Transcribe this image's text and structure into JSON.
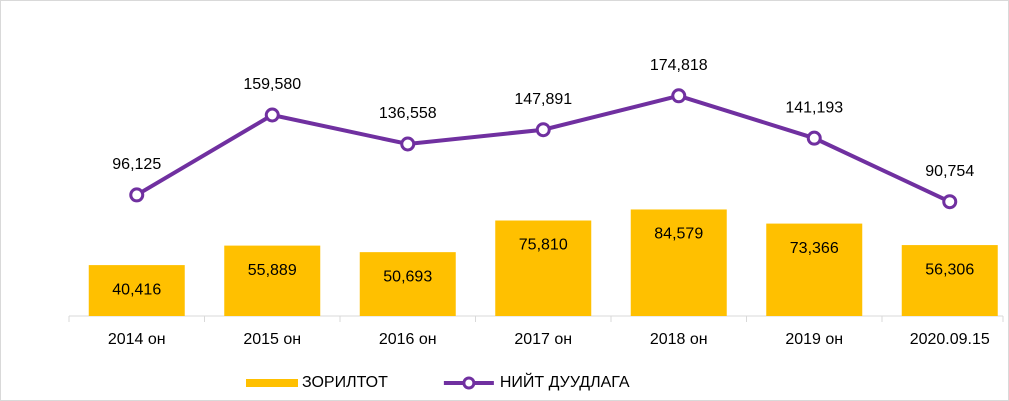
{
  "chart_data": {
    "type": "combo",
    "categories": [
      "2014 он",
      "2015 он",
      "2016 он",
      "2017 он",
      "2018 он",
      "2019 он",
      "2020.09.15"
    ],
    "series": [
      {
        "name": "ЗОРИЛТОТ",
        "type": "bar",
        "color": "#ffc000",
        "values": [
          40416,
          55889,
          50693,
          75810,
          84579,
          73366,
          56306
        ],
        "value_labels": [
          "40,416",
          "55,889",
          "50,693",
          "75,810",
          "84,579",
          "73,366",
          "56,306"
        ]
      },
      {
        "name": "НИЙТ ДУУДЛАГА",
        "type": "line",
        "color": "#7030a0",
        "values": [
          96125,
          159580,
          136558,
          147891,
          174818,
          141193,
          90754
        ],
        "value_labels": [
          "96,125",
          "159,580",
          "136,558",
          "147,891",
          "174,818",
          "141,193",
          "90,754"
        ]
      }
    ],
    "ylim": [
      0,
      235000
    ],
    "legend": "bottom",
    "grid": false
  }
}
